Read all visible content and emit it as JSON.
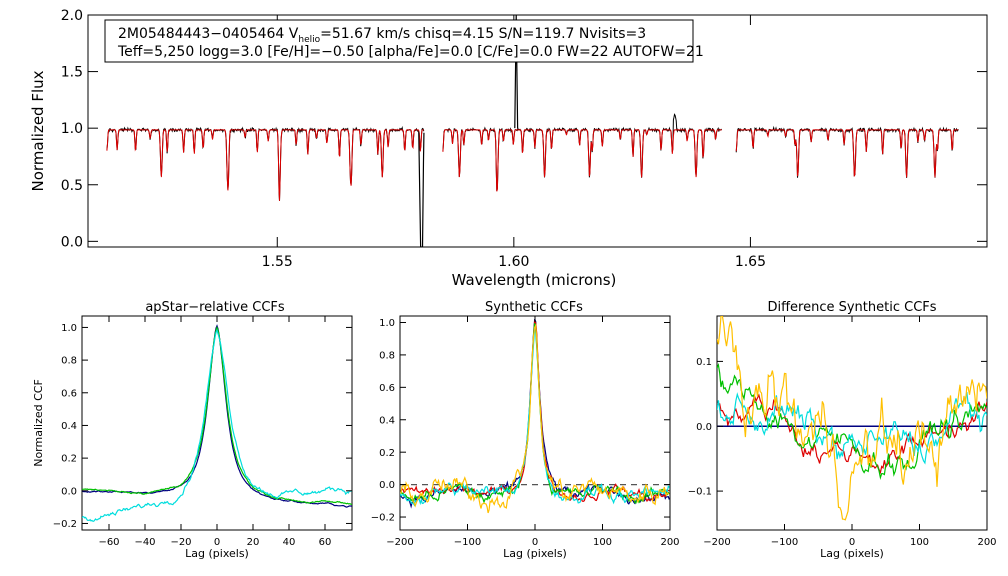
{
  "figure": {
    "title_line1_pre": "2M05484443−0405464  V",
    "title_line1_sub": "helio",
    "title_line1_post": "=51.67 km/s  chisq=4.15  S/N=119.7  Nvisits=3",
    "title_line2": "Teff=5,250 logg=3.0 [Fe/H]=−0.50 [alpha/Fe]=0.0 [C/Fe]=0.0 FW=22 AUTOFW=21"
  },
  "chart_data": [
    {
      "id": "spectrum",
      "type": "line",
      "xlabel": "Wavelength (microns)",
      "ylabel": "Normalized Flux",
      "xlim": [
        1.51,
        1.7
      ],
      "ylim": [
        -0.05,
        2.0
      ],
      "xticks": [
        1.55,
        1.6,
        1.65
      ],
      "xtick_labels": [
        "1.55",
        "1.60",
        "1.65"
      ],
      "yticks": [
        0.0,
        0.5,
        1.0,
        1.5,
        2.0
      ],
      "ytick_labels": [
        "0.0",
        "0.5",
        "1.0",
        "1.5",
        "2.0"
      ],
      "chips": [
        [
          1.514,
          1.581
        ],
        [
          1.585,
          1.644
        ],
        [
          1.647,
          1.694
        ]
      ],
      "deep_lines": [
        1.5255,
        1.5395,
        1.5505,
        1.5655,
        1.5722,
        1.5885,
        1.5965,
        1.6065,
        1.616,
        1.627,
        1.6385,
        1.66,
        1.672,
        1.683,
        1.689
      ],
      "features": [
        {
          "kind": "drop",
          "x": 1.5805,
          "value": -0.05
        },
        {
          "kind": "spike",
          "x": 1.6005,
          "value": 2.0
        },
        {
          "kind": "bump",
          "x": 1.634,
          "value": 1.13
        }
      ],
      "series": [
        {
          "name": "observed",
          "color": "#000000"
        },
        {
          "name": "model",
          "color": "#dd0000"
        }
      ]
    },
    {
      "id": "apstar-ccf",
      "type": "line",
      "title": "apStar−relative CCFs",
      "xlabel": "Lag (pixels)",
      "ylabel": "Normalized CCF",
      "xlim": [
        -75,
        75
      ],
      "ylim": [
        -0.24,
        1.07
      ],
      "xticks": [
        -60,
        -40,
        -20,
        0,
        20,
        40,
        60
      ],
      "xtick_labels": [
        "−60",
        "−40",
        "−20",
        "0",
        "20",
        "40",
        "60"
      ],
      "yticks": [
        -0.2,
        0.0,
        0.2,
        0.4,
        0.6,
        0.8,
        1.0
      ],
      "ytick_labels": [
        "−0.2",
        "0.0",
        "0.2",
        "0.4",
        "0.6",
        "0.8",
        "1.0"
      ],
      "series": [
        {
          "name": "ccf-1",
          "color": "#000080",
          "peak": 1.0,
          "width": 6.5,
          "base": -0.05,
          "slope": -0.0006,
          "noise": 0.01
        },
        {
          "name": "ccf-2",
          "color": "#00c000",
          "peak": 0.99,
          "width": 6.8,
          "base": -0.04,
          "slope": -0.0006,
          "noise": 0.012
        },
        {
          "name": "ccf-3",
          "color": "#00dddd",
          "peak": 0.98,
          "width": 9.0,
          "base": -0.08,
          "slope": 0.0012,
          "noise": 0.03
        }
      ]
    },
    {
      "id": "synthetic-ccf",
      "type": "line",
      "title": "Synthetic CCFs",
      "xlabel": "Lag (pixels)",
      "xlim": [
        -200,
        200
      ],
      "ylim": [
        -0.28,
        1.04
      ],
      "xticks": [
        -200,
        -100,
        0,
        100,
        200
      ],
      "xtick_labels": [
        "−200",
        "−100",
        "0",
        "100",
        "200"
      ],
      "yticks": [
        -0.2,
        0.0,
        0.2,
        0.4,
        0.6,
        0.8,
        1.0
      ],
      "ytick_labels": [
        "−0.2",
        "0.0",
        "0.2",
        "0.4",
        "0.6",
        "0.8",
        "1.0"
      ],
      "reference_line": 0.0,
      "series": [
        {
          "name": "ccf-navy",
          "color": "#000080",
          "peak": 1.0,
          "width": 12,
          "base": -0.06,
          "noise": 0.04
        },
        {
          "name": "ccf-red",
          "color": "#dd0000",
          "peak": 1.0,
          "width": 12,
          "base": -0.05,
          "noise": 0.04
        },
        {
          "name": "ccf-green",
          "color": "#00c000",
          "peak": 1.0,
          "width": 12,
          "base": -0.06,
          "noise": 0.045
        },
        {
          "name": "ccf-cyan",
          "color": "#00dddd",
          "peak": 1.0,
          "width": 12,
          "base": -0.05,
          "noise": 0.05
        },
        {
          "name": "ccf-gold",
          "color": "#ffc000",
          "peak": 1.0,
          "width": 12,
          "base": -0.05,
          "noise": 0.08
        }
      ]
    },
    {
      "id": "difference-ccf",
      "type": "line",
      "title": "Difference Synthetic CCFs",
      "xlabel": "Lag (pixels)",
      "xlim": [
        -200,
        200
      ],
      "ylim": [
        -0.16,
        0.17
      ],
      "xticks": [
        -200,
        -100,
        0,
        100,
        200
      ],
      "xtick_labels": [
        "−200",
        "−100",
        "0",
        "100",
        "200"
      ],
      "yticks": [
        -0.1,
        0.0,
        0.1
      ],
      "ytick_labels": [
        "−0.1",
        "0.0",
        "0.1"
      ],
      "reference_line": 0.0,
      "series": [
        {
          "name": "diff-navy",
          "color": "#000080",
          "flat": 0.0
        },
        {
          "name": "diff-red",
          "color": "#dd0000",
          "start": 0.04,
          "noise": 0.02
        },
        {
          "name": "diff-green",
          "color": "#00c000",
          "start": 0.09,
          "noise": 0.025
        },
        {
          "name": "diff-cyan",
          "color": "#00dddd",
          "start": 0.02,
          "noise": 0.03
        },
        {
          "name": "diff-gold",
          "color": "#ffc000",
          "start": 0.15,
          "noise": 0.06
        }
      ]
    }
  ]
}
